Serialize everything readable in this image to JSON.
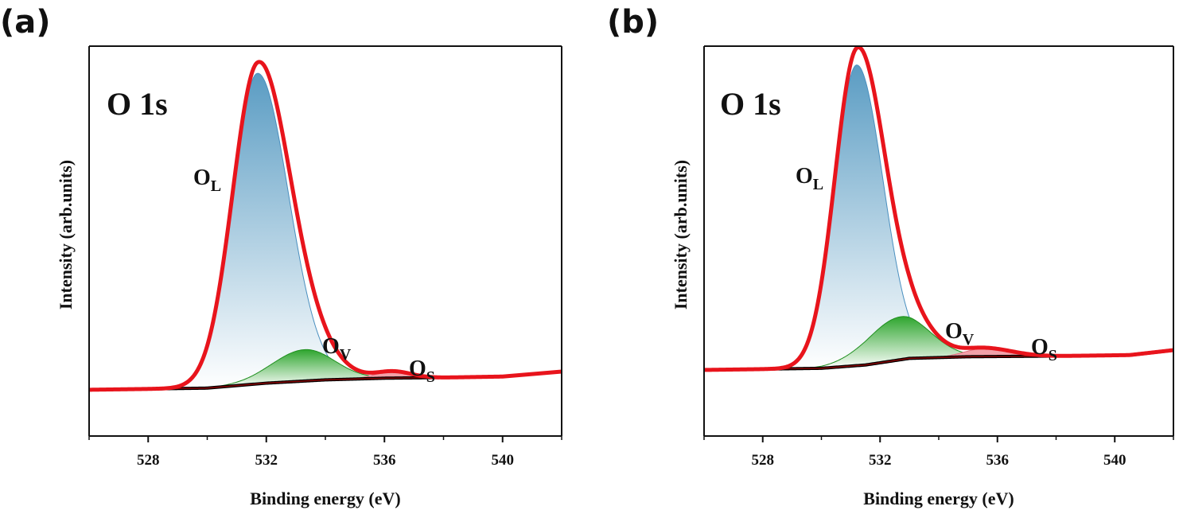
{
  "panel_labels": [
    "(a)",
    "(b)"
  ],
  "colors": {
    "envelope": "#e8141c",
    "background_line": "#8b0000",
    "ol_fill_top": "#5a9cc3",
    "ol_fill_bottom": "#ffffff",
    "ov_fill_top": "#2ea52e",
    "ov_fill_bottom": "#ffffff",
    "os_fill": "#f2a0a8",
    "axis": "#111111"
  },
  "chart_data": [
    {
      "type": "line",
      "panel": "(a)",
      "title": "O 1s",
      "xlabel": "Binding energy (eV)",
      "ylabel": "Intensity (arb.units)",
      "xlim": [
        526,
        542
      ],
      "ylim": [
        0,
        1.18
      ],
      "xticks": [
        "528",
        "532",
        "536",
        "540"
      ],
      "background": [
        [
          526,
          0.14
        ],
        [
          530,
          0.145
        ],
        [
          532,
          0.16
        ],
        [
          534,
          0.17
        ],
        [
          536,
          0.175
        ],
        [
          538,
          0.177
        ],
        [
          540,
          0.18
        ],
        [
          542,
          0.195
        ]
      ],
      "peaks": [
        {
          "name": "O_L",
          "label_main": "O",
          "label_sub": "L",
          "center": 531.7,
          "height": 0.94,
          "sigma_left": 0.85,
          "sigma_right": 1.05
        },
        {
          "name": "O_V",
          "label_main": "O",
          "label_sub": "V",
          "center": 533.3,
          "height": 0.095,
          "sigma_left": 1.1,
          "sigma_right": 1.0
        },
        {
          "name": "O_S",
          "label_main": "O",
          "label_sub": "S",
          "center": 536.3,
          "height": 0.02,
          "sigma_left": 0.6,
          "sigma_right": 0.6
        }
      ]
    },
    {
      "type": "line",
      "panel": "(b)",
      "title": "O 1s",
      "xlabel": "Binding energy (eV)",
      "ylabel": "Intensity (arb.units)",
      "xlim": [
        526,
        542
      ],
      "ylim": [
        0,
        1.18
      ],
      "xticks": [
        "528",
        "532",
        "536",
        "540"
      ],
      "background": [
        [
          526,
          0.2
        ],
        [
          530,
          0.205
        ],
        [
          531.5,
          0.215
        ],
        [
          533,
          0.235
        ],
        [
          535,
          0.24
        ],
        [
          538,
          0.242
        ],
        [
          540.5,
          0.245
        ],
        [
          542,
          0.26
        ]
      ],
      "peaks": [
        {
          "name": "O_L",
          "label_main": "O",
          "label_sub": "L",
          "center": 531.2,
          "height": 0.91,
          "sigma_left": 0.75,
          "sigma_right": 0.9
        },
        {
          "name": "O_V",
          "label_main": "O",
          "label_sub": "V",
          "center": 532.7,
          "height": 0.13,
          "sigma_left": 1.1,
          "sigma_right": 1.0
        },
        {
          "name": "O_S",
          "label_main": "O",
          "label_sub": "S",
          "center": 535.6,
          "height": 0.025,
          "sigma_left": 0.7,
          "sigma_right": 0.9
        }
      ]
    }
  ]
}
